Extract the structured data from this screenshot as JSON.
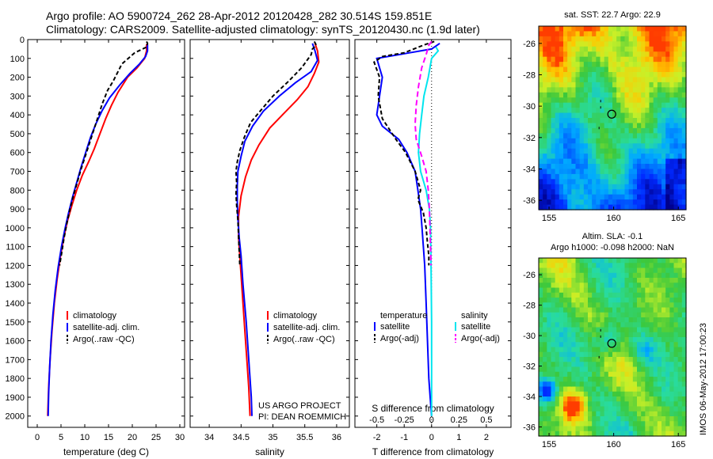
{
  "title_line1": "Argo profile: AO 5900724_262 28-Apr-2012 20120428_282 30.514S 159.851E",
  "title_line2": "Climatology: CARS2009. Satellite-adjusted climatology: synTS_20120430.nc (1.9d later)",
  "sst_title": "sat. SST: 22.7  Argo: 22.9",
  "sla_title_line1": "Altim. SLA: -0.1",
  "sla_title_line2": "Argo h1000: -0.098 h2000: NaN",
  "footer_vertical": "IMOS 06-May-2012 17:00:23",
  "project_line1": "US ARGO PROJECT",
  "project_line2": "PI: DEAN ROEMMICH",
  "depth_ticks": [
    "0",
    "100",
    "200",
    "300",
    "400",
    "500",
    "600",
    "700",
    "800",
    "900",
    "1000",
    "1100",
    "1200",
    "1300",
    "1400",
    "1500",
    "1600",
    "1700",
    "1800",
    "1900",
    "2000"
  ],
  "temp_legend": [
    "climatology",
    "satellite-adj. clim.",
    "Argo(..raw -QC)"
  ],
  "sal_legend": [
    "climatology",
    "satellite-adj. clim.",
    "Argo(..raw -QC)"
  ],
  "diff_legend": {
    "temp_header": "temperature",
    "sal_header": "salinity",
    "items": [
      "satellite",
      "Argo(-adj)",
      "satellite",
      "Argo(-adj)"
    ]
  },
  "colors": {
    "climatology": "#ff0000",
    "satellite": "#0000ff",
    "argo": "#000000",
    "sal_sat": "#00e5ee",
    "sal_argo": "#ff00ff"
  },
  "chart_data": [
    {
      "type": "line",
      "xlabel": "temperature (deg C)",
      "xlim": [
        -2,
        31
      ],
      "ylim": [
        2060,
        0
      ],
      "xticks": [
        "0",
        "5",
        "10",
        "15",
        "20",
        "25",
        "30"
      ],
      "series": [
        {
          "name": "climatology",
          "points": [
            [
              23,
              25
            ],
            [
              23,
              60
            ],
            [
              22.6,
              100
            ],
            [
              21,
              150
            ],
            [
              19,
              200
            ],
            [
              17,
              280
            ],
            [
              15.6,
              350
            ],
            [
              14.4,
              420
            ],
            [
              13.2,
              500
            ],
            [
              12,
              580
            ],
            [
              10.8,
              650
            ],
            [
              9.5,
              720
            ],
            [
              8.3,
              800
            ],
            [
              7.3,
              880
            ],
            [
              6.4,
              960
            ],
            [
              5.6,
              1050
            ],
            [
              4.9,
              1150
            ],
            [
              4.2,
              1270
            ],
            [
              3.6,
              1400
            ],
            [
              3.1,
              1550
            ],
            [
              2.7,
              1700
            ],
            [
              2.4,
              1850
            ],
            [
              2.2,
              2000
            ]
          ]
        },
        {
          "name": "satellite-adj. clim.",
          "points": [
            [
              23.2,
              25
            ],
            [
              23.2,
              60
            ],
            [
              22.8,
              90
            ],
            [
              21.5,
              130
            ],
            [
              19.5,
              180
            ],
            [
              17.4,
              240
            ],
            [
              15.2,
              310
            ],
            [
              13.6,
              380
            ],
            [
              12.3,
              450
            ],
            [
              11.2,
              520
            ],
            [
              10.2,
              600
            ],
            [
              9.2,
              680
            ],
            [
              8.3,
              760
            ],
            [
              7.4,
              840
            ],
            [
              6.6,
              920
            ],
            [
              5.8,
              1010
            ],
            [
              5.1,
              1100
            ],
            [
              4.4,
              1210
            ],
            [
              3.8,
              1330
            ],
            [
              3.3,
              1460
            ],
            [
              2.9,
              1600
            ],
            [
              2.6,
              1750
            ],
            [
              2.4,
              1880
            ],
            [
              2.3,
              2000
            ]
          ]
        },
        {
          "name": "Argo(..raw -QC)",
          "points": [
            [
              23,
              10
            ],
            [
              23.2,
              20
            ],
            [
              23,
              40
            ],
            [
              20.5,
              70
            ],
            [
              17.8,
              130
            ],
            [
              16.8,
              180
            ],
            [
              16,
              220
            ],
            [
              14.8,
              270
            ],
            [
              13.7,
              340
            ],
            [
              12.8,
              410
            ],
            [
              11.9,
              480
            ],
            [
              11,
              550
            ],
            [
              10.1,
              620
            ],
            [
              9.2,
              690
            ],
            [
              8.4,
              760
            ],
            [
              7.6,
              830
            ],
            [
              6.9,
              900
            ],
            [
              6.2,
              980
            ],
            [
              5.6,
              1060
            ],
            [
              5.1,
              1140
            ],
            [
              4.7,
              1200
            ]
          ]
        }
      ]
    },
    {
      "type": "line",
      "xlabel": "salinity",
      "xlim": [
        33.7,
        36.2
      ],
      "ylim": [
        2060,
        0
      ],
      "xticks": [
        "34",
        "34.5",
        "35",
        "35.5",
        "36"
      ],
      "series": [
        {
          "name": "climatology",
          "points": [
            [
              35.66,
              20
            ],
            [
              35.7,
              60
            ],
            [
              35.72,
              120
            ],
            [
              35.65,
              180
            ],
            [
              35.55,
              250
            ],
            [
              35.38,
              320
            ],
            [
              35.15,
              400
            ],
            [
              34.95,
              470
            ],
            [
              34.78,
              560
            ],
            [
              34.66,
              640
            ],
            [
              34.57,
              730
            ],
            [
              34.5,
              830
            ],
            [
              34.46,
              940
            ],
            [
              34.46,
              1050
            ],
            [
              34.48,
              1150
            ],
            [
              34.5,
              1250
            ],
            [
              34.53,
              1400
            ],
            [
              34.56,
              1550
            ],
            [
              34.59,
              1700
            ],
            [
              34.62,
              1850
            ],
            [
              34.64,
              2000
            ]
          ]
        },
        {
          "name": "satellite-adj. clim.",
          "points": [
            [
              35.62,
              20
            ],
            [
              35.66,
              60
            ],
            [
              35.7,
              110
            ],
            [
              35.6,
              170
            ],
            [
              35.35,
              230
            ],
            [
              35.1,
              300
            ],
            [
              34.85,
              380
            ],
            [
              34.68,
              460
            ],
            [
              34.56,
              540
            ],
            [
              34.5,
              620
            ],
            [
              34.45,
              700
            ],
            [
              34.44,
              780
            ],
            [
              34.44,
              860
            ],
            [
              34.45,
              950
            ],
            [
              34.47,
              1050
            ],
            [
              34.5,
              1150
            ],
            [
              34.53,
              1300
            ],
            [
              34.58,
              1500
            ],
            [
              34.62,
              1700
            ],
            [
              34.66,
              1900
            ],
            [
              34.67,
              2000
            ]
          ]
        },
        {
          "name": "Argo(..raw -QC)",
          "points": [
            [
              35.65,
              10
            ],
            [
              35.68,
              30
            ],
            [
              35.62,
              50
            ],
            [
              35.6,
              80
            ],
            [
              35.45,
              150
            ],
            [
              35.25,
              220
            ],
            [
              35,
              300
            ],
            [
              34.8,
              380
            ],
            [
              34.65,
              440
            ],
            [
              34.55,
              520
            ],
            [
              34.48,
              590
            ],
            [
              34.44,
              650
            ],
            [
              34.42,
              700
            ],
            [
              34.43,
              760
            ],
            [
              34.42,
              820
            ],
            [
              34.43,
              880
            ],
            [
              34.45,
              960
            ],
            [
              34.46,
              1040
            ],
            [
              34.47,
              1120
            ],
            [
              34.48,
              1200
            ]
          ]
        }
      ]
    },
    {
      "type": "line",
      "xlabel": "T difference from climatology",
      "top_xlabel": "S difference from climatology",
      "xlim": [
        -2.8,
        2.9
      ],
      "ylim": [
        2060,
        0
      ],
      "xticks": [
        "-2",
        "-1",
        "0",
        "1",
        "2"
      ],
      "top_xticks": [
        "-0.5",
        "-0.25",
        "0",
        "0.25",
        "0.5"
      ],
      "top_scale": 4,
      "series": [
        {
          "name": "temperature satellite",
          "points": [
            [
              0.3,
              20
            ],
            [
              0,
              50
            ],
            [
              -0.8,
              70
            ],
            [
              -2,
              100
            ],
            [
              -1.8,
              200
            ],
            [
              -1.9,
              300
            ],
            [
              -2,
              400
            ],
            [
              -1.8,
              460
            ],
            [
              -1.2,
              530
            ],
            [
              -0.9,
              600
            ],
            [
              -0.6,
              700
            ],
            [
              -0.5,
              800
            ],
            [
              -0.4,
              900
            ],
            [
              -0.35,
              1000
            ],
            [
              -0.3,
              1100
            ],
            [
              -0.25,
              1200
            ],
            [
              -0.2,
              1400
            ],
            [
              -0.15,
              1600
            ],
            [
              -0.1,
              1800
            ],
            [
              -0.05,
              1900
            ],
            [
              0,
              2000
            ]
          ]
        },
        {
          "name": "temperature Argo(-adj)",
          "points": [
            [
              0.1,
              10
            ],
            [
              -0.3,
              30
            ],
            [
              -1,
              70
            ],
            [
              -1.8,
              90
            ],
            [
              -2.1,
              120
            ],
            [
              -1.9,
              200
            ],
            [
              -1.95,
              300
            ],
            [
              -1.8,
              420
            ],
            [
              -1.3,
              530
            ],
            [
              -0.95,
              600
            ],
            [
              -0.6,
              700
            ],
            [
              -0.4,
              800
            ],
            [
              -0.5,
              850
            ],
            [
              -0.3,
              920
            ],
            [
              -0.2,
              1000
            ],
            [
              -0.15,
              1080
            ],
            [
              -0.1,
              1150
            ],
            [
              -0.1,
              1200
            ]
          ]
        },
        {
          "name": "salinity satellite",
          "points": [
            [
              0.16,
              40
            ],
            [
              0.24,
              60
            ],
            [
              0,
              100
            ],
            [
              -0.12,
              200
            ],
            [
              -0.28,
              300
            ],
            [
              -0.36,
              400
            ],
            [
              -0.44,
              500
            ],
            [
              -0.48,
              600
            ],
            [
              -0.4,
              700
            ],
            [
              -0.2,
              800
            ],
            [
              -0.08,
              900
            ],
            [
              -0.04,
              1000
            ],
            [
              -0.02,
              1200
            ],
            [
              0,
              1500
            ],
            [
              0,
              2000
            ]
          ]
        },
        {
          "name": "salinity Argo(-adj)",
          "points": [
            [
              0,
              10
            ],
            [
              -0.1,
              30
            ],
            [
              -0.2,
              80
            ],
            [
              -0.36,
              150
            ],
            [
              -0.48,
              250
            ],
            [
              -0.56,
              350
            ],
            [
              -0.6,
              450
            ],
            [
              -0.56,
              530
            ],
            [
              -0.36,
              620
            ],
            [
              -0.2,
              700
            ],
            [
              -0.12,
              800
            ],
            [
              -0.08,
              900
            ],
            [
              -0.06,
              1000
            ],
            [
              -0.04,
              1100
            ],
            [
              -0.02,
              1200
            ]
          ]
        }
      ]
    },
    {
      "type": "heatmap",
      "title": "sat. SST: 22.7  Argo: 22.9",
      "xticks": [
        "155",
        "160",
        "165"
      ],
      "yticks": [
        "-26",
        "-28",
        "-30",
        "-32",
        "-34",
        "-36"
      ],
      "xlim": [
        154.2,
        165.6
      ],
      "ylim": [
        -36.6,
        -24.9
      ],
      "marker": [
        159.85,
        -30.51
      ]
    },
    {
      "type": "heatmap",
      "title": "Altim. SLA: -0.1",
      "xticks": [
        "155",
        "160",
        "165"
      ],
      "yticks": [
        "-26",
        "-28",
        "-30",
        "-32",
        "-34",
        "-36"
      ],
      "xlim": [
        154.2,
        165.6
      ],
      "ylim": [
        -36.6,
        -24.9
      ],
      "marker": [
        159.85,
        -30.51
      ]
    }
  ]
}
